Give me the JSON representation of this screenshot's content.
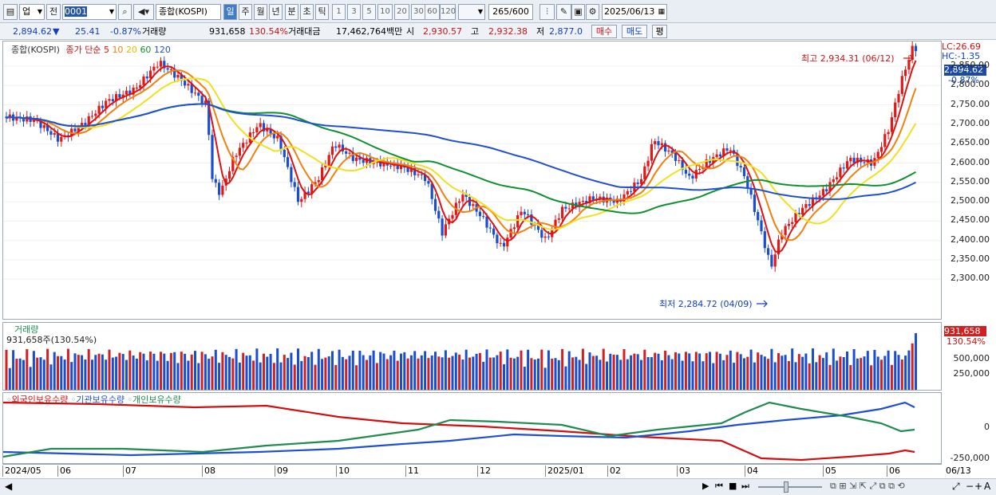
{
  "toolbar": {
    "market": "업",
    "prev_btn": "전",
    "code": "0001",
    "index_name": "종합(KOSPI)",
    "periods": [
      "일",
      "주",
      "월",
      "년",
      "분",
      "초",
      "틱"
    ],
    "intervals": [
      "1",
      "3",
      "5",
      "10",
      "20",
      "30",
      "60",
      "120"
    ],
    "count": "265",
    "count_total": "/600",
    "date": "2025/06/13"
  },
  "info": {
    "price": "2,894.62",
    "change_arrow": "▼",
    "change": "25.41",
    "change_pct": "-0.87%",
    "volume_label": "거래량",
    "volume": "931,658",
    "volume_pct": "130.54%",
    "amount_label": "거래대금",
    "amount": "17,462,764백만",
    "open_label": "시",
    "open": "2,930.57",
    "high_label": "고",
    "high": "2,932.38",
    "low_label": "저",
    "low": "2,877.0",
    "buy": "매수",
    "sell": "매도",
    "even": "평"
  },
  "price_panel": {
    "title": "종합(KOSPI)",
    "ma_label": "종가 단순",
    "ma_periods": [
      "5",
      "10",
      "20",
      "60",
      "120"
    ],
    "ma_colors": [
      "#e01010",
      "#f08010",
      "#f0e020",
      "#109030",
      "#2050d0"
    ],
    "lc": "LC:26.69",
    "hc": "HC:-1.35",
    "cur_price": "2,894.62",
    "cur_pct": "-0.87%",
    "max_label": "최고 2,934.31 (06/12)",
    "min_label": "최저 2,284.72 (04/09)",
    "yticks": [
      "2,850.00",
      "2,800.00",
      "2,750.00",
      "2,700.00",
      "2,650.00",
      "2,600.00",
      "2,550.00",
      "2,500.00",
      "2,450.00",
      "2,400.00",
      "2,350.00",
      "2,300.00"
    ]
  },
  "volume_panel": {
    "title": "거래량",
    "subtitle": "931,658주(130.54%)",
    "cur_value": "931,658",
    "cur_pct": "130.54%",
    "yticks": [
      "500,000",
      "250,000"
    ]
  },
  "investor_panel": {
    "legend": [
      {
        "label": "외국인보유수량",
        "color": "#d01010"
      },
      {
        "label": "기관보유수량",
        "color": "#2050d0"
      },
      {
        "label": "개인보유수량",
        "color": "#208a50"
      }
    ],
    "yticks": [
      "0",
      "-250,000"
    ]
  },
  "dates": [
    "2024/05",
    "06",
    "07",
    "08",
    "09",
    "10",
    "11",
    "12",
    "2025/01",
    "02",
    "03",
    "04",
    "05",
    "06"
  ],
  "date_right": "06/13"
}
